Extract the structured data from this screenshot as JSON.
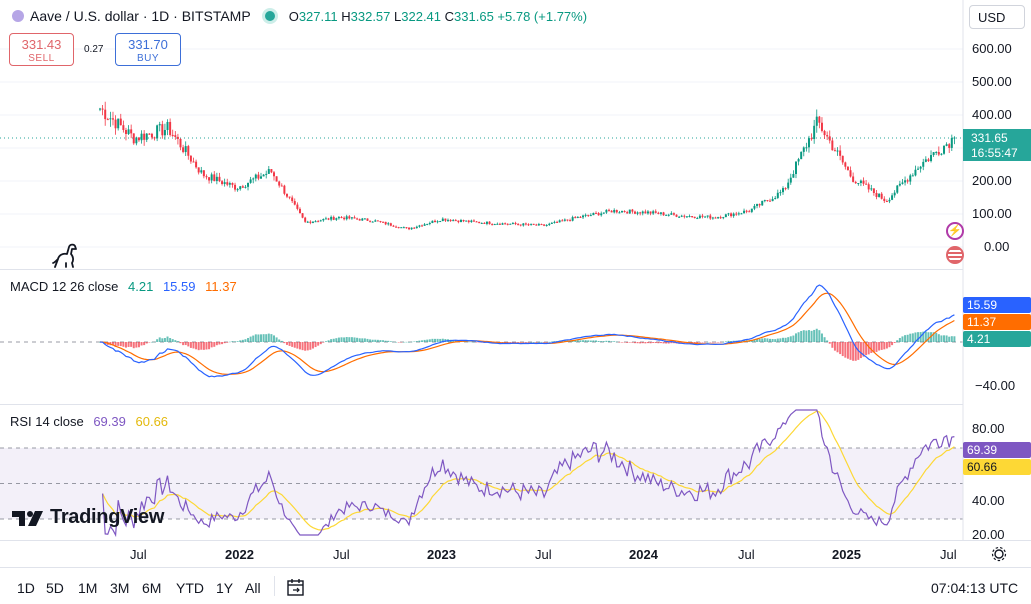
{
  "header": {
    "title": "Aave / U.S. dollar · 1D · BITSTAMP",
    "o_label": "O",
    "o_value": "327.11",
    "h_label": "H",
    "h_value": "332.57",
    "l_label": "L",
    "l_value": "322.41",
    "c_label": "C",
    "c_value": "331.65",
    "change": "+5.78 (+1.77%)",
    "currency": "USD"
  },
  "trade": {
    "sell_price": "331.43",
    "sell_label": "SELL",
    "buy_price": "331.70",
    "buy_label": "BUY",
    "spread": "0.27"
  },
  "price_axis": {
    "ticks": [
      "600.00",
      "500.00",
      "400.00",
      "300.00",
      "200.00",
      "100.00",
      "0.00"
    ],
    "last_price": "331.65",
    "countdown": "16:55:47"
  },
  "macd": {
    "label": "MACD 12 26 close",
    "hist_value": "4.21",
    "macd_value": "15.59",
    "signal_value": "11.37",
    "axis_tick": "−40.00"
  },
  "rsi": {
    "label": "RSI 14 close",
    "rsi_value": "69.39",
    "ma_value": "60.66",
    "axis_ticks": [
      "80.00",
      "60.00",
      "40.00",
      "20.00"
    ]
  },
  "time_axis": {
    "labels": [
      "Jul",
      "2022",
      "Jul",
      "2023",
      "Jul",
      "2024",
      "Jul",
      "2025",
      "Jul"
    ]
  },
  "footer": {
    "ranges": [
      "1D",
      "5D",
      "1M",
      "3M",
      "6M",
      "YTD",
      "1Y",
      "All"
    ],
    "clock": "07:04:13 UTC"
  },
  "brand": {
    "name": "TradingView"
  },
  "colors": {
    "up": "#089981",
    "down": "#f23645",
    "macd": "#2962ff",
    "signal": "#ff6d00",
    "rsi": "#7e57c2",
    "rsi_ma": "#fdd835",
    "last_price": "#26a69a"
  },
  "chart_data": [
    {
      "type": "candlestick",
      "title": "Aave / U.S. dollar · 1D · BITSTAMP",
      "x": [
        "2021-06",
        "2021-08",
        "2021-10",
        "2021-12",
        "2022-02",
        "2022-04",
        "2022-06",
        "2022-08",
        "2022-10",
        "2022-12",
        "2023-02",
        "2023-04",
        "2023-06",
        "2023-08",
        "2023-10",
        "2023-12",
        "2024-02",
        "2024-04",
        "2024-06",
        "2024-08",
        "2024-10",
        "2024-12",
        "2025-02",
        "2025-04",
        "2025-06",
        "2025-07"
      ],
      "series": [
        {
          "name": "close",
          "values": [
            420,
            330,
            360,
            220,
            180,
            230,
            75,
            90,
            80,
            55,
            85,
            75,
            70,
            65,
            90,
            110,
            105,
            95,
            90,
            110,
            170,
            380,
            210,
            140,
            250,
            331.65
          ]
        }
      ],
      "ylim": [
        -60,
        620
      ],
      "y_ticks": [
        600,
        500,
        400,
        300,
        200,
        100,
        0
      ],
      "last_value": 331.65
    },
    {
      "type": "line",
      "title": "MACD 12 26 close",
      "series": [
        {
          "name": "MACD",
          "last": 15.59
        },
        {
          "name": "Signal",
          "last": 11.37
        },
        {
          "name": "Histogram",
          "last": 4.21
        }
      ],
      "y_ticks": [
        -40
      ]
    },
    {
      "type": "line",
      "title": "RSI 14 close",
      "series": [
        {
          "name": "RSI",
          "last": 69.39
        },
        {
          "name": "RSI MA",
          "last": 60.66
        }
      ],
      "bands": [
        70,
        50,
        30
      ],
      "ylim": [
        20,
        85
      ],
      "y_ticks": [
        80,
        60,
        40,
        20
      ]
    }
  ]
}
